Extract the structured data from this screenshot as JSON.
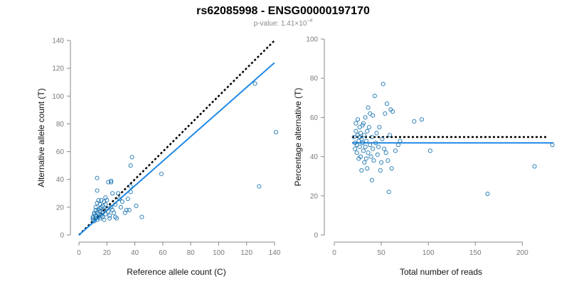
{
  "title": "rs62085998 - ENSG00000197170",
  "subtitle": {
    "prefix": "p-value: 1.41×10",
    "exponent": "−4"
  },
  "colors": {
    "point": "#1f78b4",
    "fit": "#1e88e5",
    "reference": "#000000",
    "axis": "#8a8a8a"
  },
  "chart_data": [
    {
      "type": "scatter",
      "xlabel": "Reference allele count (C)",
      "ylabel": "Alternative allele count (T)",
      "xlim": [
        0,
        140
      ],
      "ylim": [
        0,
        140
      ],
      "xticks": [
        "0",
        "20",
        "40",
        "60",
        "80",
        "100",
        "120",
        "140"
      ],
      "yticks": [
        "0",
        "20",
        "40",
        "60",
        "80",
        "100",
        "120",
        "140"
      ],
      "reference_line": {
        "style": "dotted",
        "from": [
          0,
          0
        ],
        "to": [
          140,
          140
        ]
      },
      "fit_line": {
        "style": "solid",
        "from": [
          0,
          0
        ],
        "to": [
          140,
          124
        ]
      },
      "points": [
        [
          10,
          11
        ],
        [
          10,
          13
        ],
        [
          11,
          15
        ],
        [
          12,
          12
        ],
        [
          12,
          14
        ],
        [
          13,
          11
        ],
        [
          13,
          16
        ],
        [
          14,
          13
        ],
        [
          14,
          15
        ],
        [
          15,
          12
        ],
        [
          15,
          17
        ],
        [
          16,
          14
        ],
        [
          16,
          20
        ],
        [
          17,
          16
        ],
        [
          18,
          18
        ],
        [
          19,
          15
        ],
        [
          20,
          19
        ],
        [
          21,
          17
        ],
        [
          22,
          14
        ],
        [
          23,
          20
        ],
        [
          24,
          18
        ],
        [
          25,
          16
        ],
        [
          26,
          22
        ],
        [
          12,
          20
        ],
        [
          13,
          23
        ],
        [
          14,
          25
        ],
        [
          16,
          25
        ],
        [
          18,
          24
        ],
        [
          20,
          25
        ],
        [
          21,
          38
        ],
        [
          23,
          38
        ],
        [
          23,
          39
        ],
        [
          13,
          41
        ],
        [
          13,
          32
        ],
        [
          15,
          22
        ],
        [
          17,
          21
        ],
        [
          19,
          22
        ],
        [
          22,
          12
        ],
        [
          24,
          30
        ],
        [
          26,
          13
        ],
        [
          28,
          30
        ],
        [
          30,
          20
        ],
        [
          31,
          24
        ],
        [
          33,
          16
        ],
        [
          34,
          18
        ],
        [
          35,
          26
        ],
        [
          37,
          50
        ],
        [
          38,
          56
        ],
        [
          37,
          35
        ],
        [
          37,
          31
        ],
        [
          36,
          18
        ],
        [
          41,
          21
        ],
        [
          45,
          13
        ],
        [
          59,
          44
        ],
        [
          126,
          109
        ],
        [
          129,
          35
        ],
        [
          141,
          74
        ],
        [
          27,
          12
        ],
        [
          29,
          26
        ],
        [
          11,
          10
        ],
        [
          10,
          12
        ],
        [
          11,
          16
        ],
        [
          12,
          18
        ],
        [
          14,
          18
        ],
        [
          15,
          19
        ],
        [
          17,
          13
        ],
        [
          18,
          11
        ],
        [
          19,
          27
        ]
      ]
    },
    {
      "type": "scatter",
      "xlabel": "Total number of reads",
      "ylabel": "Percentage alternative (T)",
      "xlim": [
        0,
        230
      ],
      "ylim": [
        0,
        100
      ],
      "xticks": [
        "0",
        "50",
        "100",
        "150",
        "200"
      ],
      "yticks": [
        "0",
        "20",
        "40",
        "60",
        "80",
        "100"
      ],
      "reference_line": {
        "style": "dotted",
        "y": 50
      },
      "fit_line": {
        "style": "solid",
        "y": 47
      },
      "points": [
        [
          21,
          50
        ],
        [
          22,
          47
        ],
        [
          22,
          44
        ],
        [
          23,
          53
        ],
        [
          23,
          57
        ],
        [
          24,
          46
        ],
        [
          24,
          42
        ],
        [
          25,
          59
        ],
        [
          25,
          51
        ],
        [
          26,
          48
        ],
        [
          26,
          39
        ],
        [
          27,
          55
        ],
        [
          27,
          45
        ],
        [
          28,
          52
        ],
        [
          28,
          40
        ],
        [
          29,
          49
        ],
        [
          29,
          33
        ],
        [
          30,
          47
        ],
        [
          31,
          43
        ],
        [
          31,
          57
        ],
        [
          32,
          51
        ],
        [
          32,
          37
        ],
        [
          33,
          60
        ],
        [
          33,
          45
        ],
        [
          34,
          48
        ],
        [
          35,
          34
        ],
        [
          35,
          53
        ],
        [
          36,
          65
        ],
        [
          36,
          42
        ],
        [
          37,
          55
        ],
        [
          38,
          62
        ],
        [
          38,
          46
        ],
        [
          39,
          40
        ],
        [
          40,
          50
        ],
        [
          40,
          28
        ],
        [
          41,
          61
        ],
        [
          41,
          44
        ],
        [
          42,
          38
        ],
        [
          43,
          71
        ],
        [
          44,
          47
        ],
        [
          45,
          52
        ],
        [
          46,
          41
        ],
        [
          47,
          45
        ],
        [
          48,
          55
        ],
        [
          49,
          33
        ],
        [
          50,
          37
        ],
        [
          51,
          49
        ],
        [
          52,
          77
        ],
        [
          53,
          44
        ],
        [
          54,
          62
        ],
        [
          55,
          42
        ],
        [
          56,
          67
        ],
        [
          57,
          38
        ],
        [
          58,
          22
        ],
        [
          59,
          51
        ],
        [
          60,
          64
        ],
        [
          61,
          34
        ],
        [
          62,
          63
        ],
        [
          65,
          43
        ],
        [
          68,
          46
        ],
        [
          70,
          48
        ],
        [
          85,
          58
        ],
        [
          93,
          59
        ],
        [
          102,
          43
        ],
        [
          163,
          21
        ],
        [
          213,
          35
        ],
        [
          232,
          46
        ],
        [
          27,
          50
        ],
        [
          30,
          56
        ],
        [
          34,
          39
        ]
      ]
    }
  ]
}
